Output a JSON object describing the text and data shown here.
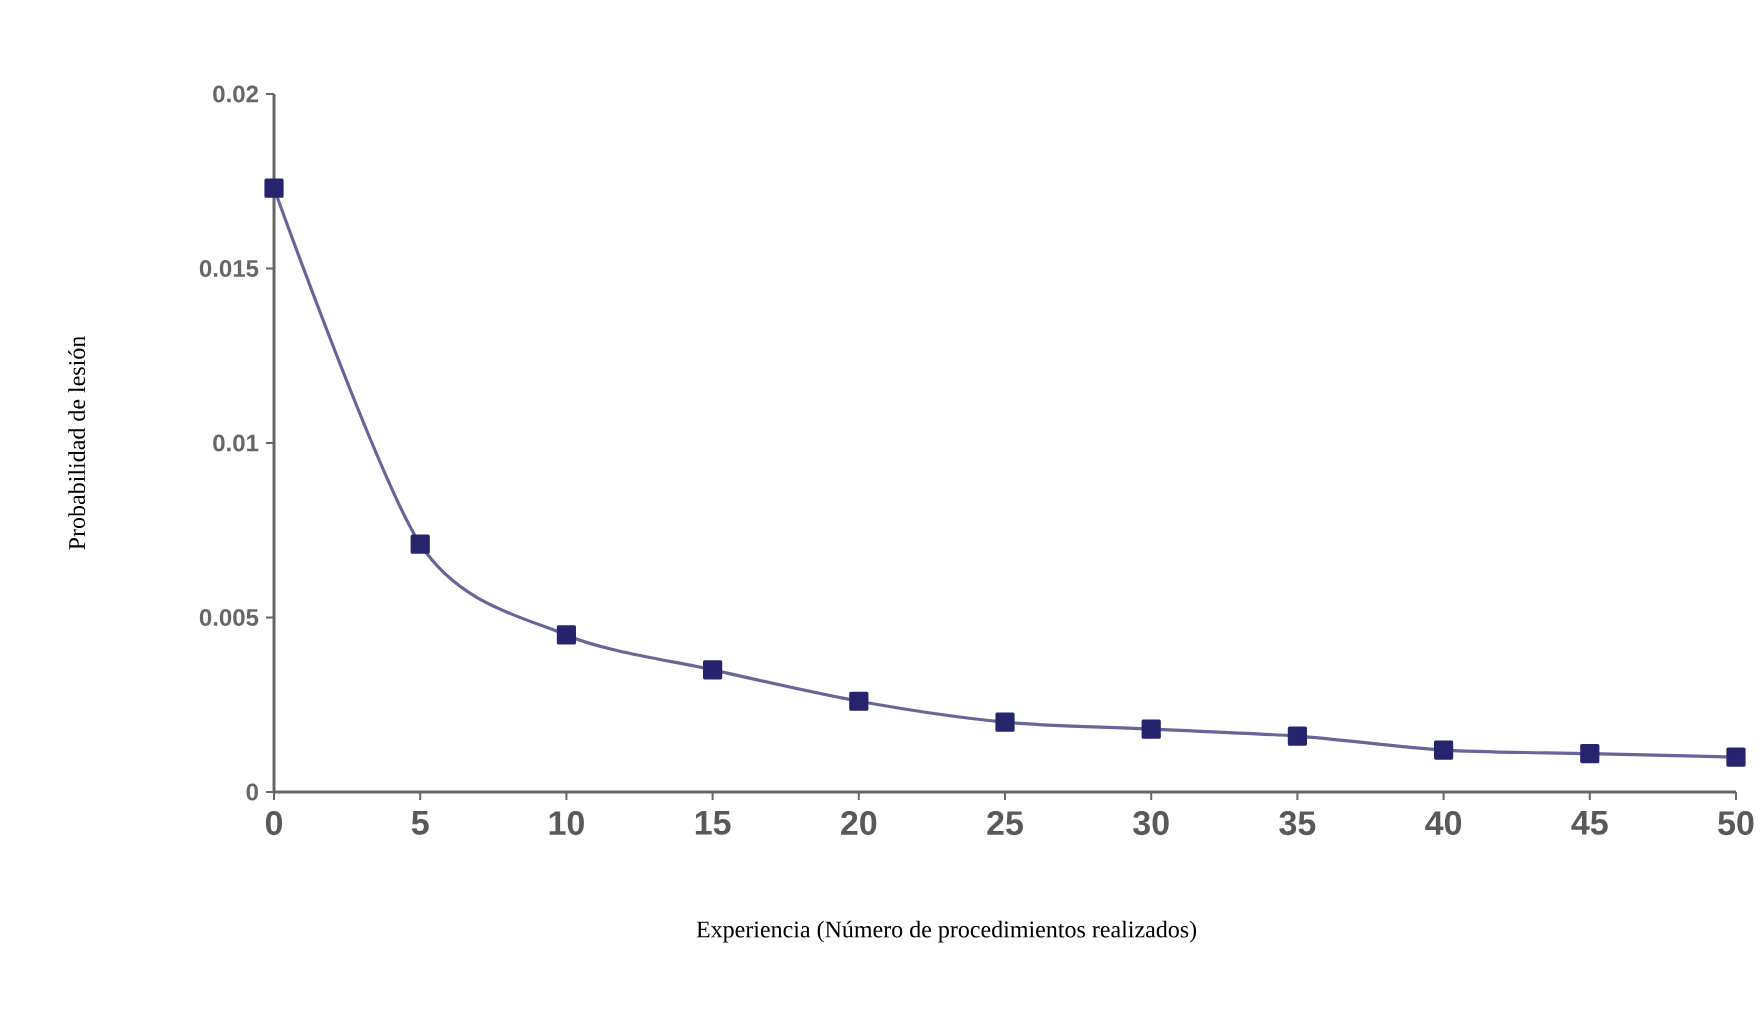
{
  "chart_data": {
    "type": "line",
    "xlabel": "Experiencia (Número de procedimientos realizados)",
    "ylabel": "Probabilidad de lesión",
    "x": [
      0,
      5,
      10,
      15,
      20,
      25,
      30,
      35,
      40,
      45,
      50
    ],
    "series": [
      {
        "color": "#27246e",
        "values": [
          0.0173,
          0.0071,
          0.0045,
          0.0035,
          0.0026,
          0.002,
          0.0018,
          0.0016,
          0.0012,
          0.0011,
          0.001
        ]
      }
    ],
    "xlim": [
      0,
      50
    ],
    "xticks": [
      0,
      5,
      10,
      15,
      20,
      25,
      30,
      35,
      40,
      45,
      50
    ],
    "ylim": [
      0,
      0.02
    ],
    "yticks": [
      0,
      0.005,
      0.01,
      0.015,
      0.02
    ],
    "marker": "square",
    "line_style": "solid",
    "grid": false
  }
}
